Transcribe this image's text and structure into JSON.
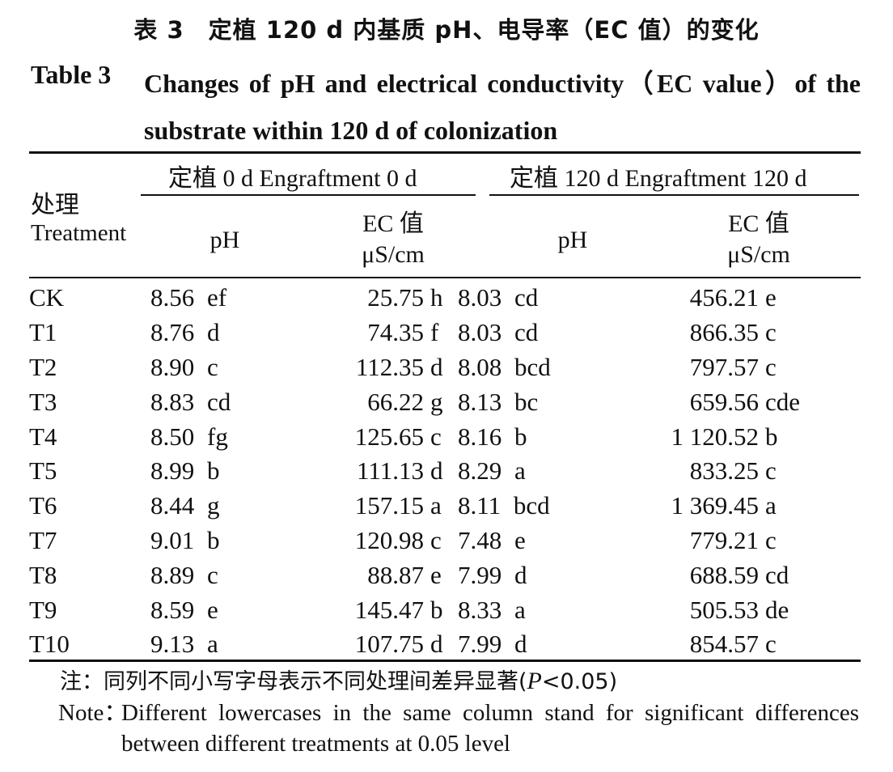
{
  "title": {
    "cn": "表 3　定植 120 d 内基质 pH、电导率（EC 值）的变化",
    "en_label": "Table 3",
    "en": "Changes of pH and electrical conductivity（EC value）of the substrate within 120 d of colonization"
  },
  "header": {
    "treatment_cn": "处理",
    "treatment_en": "Treatment",
    "group1": "定植 0 d Engraftment 0 d",
    "group2": "定植 120 d Engraftment 120 d",
    "ph": "pH",
    "ec_line1": "EC 值",
    "ec_unit": "μS/cm"
  },
  "rows": [
    {
      "t": "CK",
      "ph0": "8.56",
      "ph0s": "ef",
      "ec0": "25.75",
      "ec0s": "h",
      "ph120": "8.03",
      "ph120s": "cd",
      "ec120": "456.21",
      "ec120s": "e"
    },
    {
      "t": "T1",
      "ph0": "8.76",
      "ph0s": "d",
      "ec0": "74.35",
      "ec0s": "f",
      "ph120": "8.03",
      "ph120s": "cd",
      "ec120": "866.35",
      "ec120s": "c"
    },
    {
      "t": "T2",
      "ph0": "8.90",
      "ph0s": "c",
      "ec0": "112.35",
      "ec0s": "d",
      "ph120": "8.08",
      "ph120s": "bcd",
      "ec120": "797.57",
      "ec120s": "c"
    },
    {
      "t": "T3",
      "ph0": "8.83",
      "ph0s": "cd",
      "ec0": "66.22",
      "ec0s": "g",
      "ph120": "8.13",
      "ph120s": "bc",
      "ec120": "659.56",
      "ec120s": "cde"
    },
    {
      "t": "T4",
      "ph0": "8.50",
      "ph0s": "fg",
      "ec0": "125.65",
      "ec0s": "c",
      "ph120": "8.16",
      "ph120s": "b",
      "ec120": "1 120.52",
      "ec120s": "b"
    },
    {
      "t": "T5",
      "ph0": "8.99",
      "ph0s": "b",
      "ec0": "111.13",
      "ec0s": "d",
      "ph120": "8.29",
      "ph120s": "a",
      "ec120": "833.25",
      "ec120s": "c"
    },
    {
      "t": "T6",
      "ph0": "8.44",
      "ph0s": "g",
      "ec0": "157.15",
      "ec0s": "a",
      "ph120": "8.11",
      "ph120s": "bcd",
      "ec120": "1 369.45",
      "ec120s": "a"
    },
    {
      "t": "T7",
      "ph0": "9.01",
      "ph0s": "b",
      "ec0": "120.98",
      "ec0s": "c",
      "ph120": "7.48",
      "ph120s": "e",
      "ec120": "779.21",
      "ec120s": "c"
    },
    {
      "t": "T8",
      "ph0": "8.89",
      "ph0s": "c",
      "ec0": "88.87",
      "ec0s": "e",
      "ph120": "7.99",
      "ph120s": "d",
      "ec120": "688.59",
      "ec120s": "cd"
    },
    {
      "t": "T9",
      "ph0": "8.59",
      "ph0s": "e",
      "ec0": "145.47",
      "ec0s": "b",
      "ph120": "8.33",
      "ph120s": "a",
      "ec120": "505.53",
      "ec120s": "de"
    },
    {
      "t": "T10",
      "ph0": "9.13",
      "ph0s": "a",
      "ec0": "107.75",
      "ec0s": "d",
      "ph120": "7.99",
      "ph120s": "d",
      "ec120": "854.57",
      "ec120s": "c"
    }
  ],
  "note": {
    "cn_prefix": "注：同列不同小写字母表示不同处理间差异显著(",
    "cn_p": "P",
    "cn_suffix": "<0.05)",
    "en_label": "Note：",
    "en": "Different lowercases in the same column stand for significant differences between different treatments at 0.05 level"
  }
}
